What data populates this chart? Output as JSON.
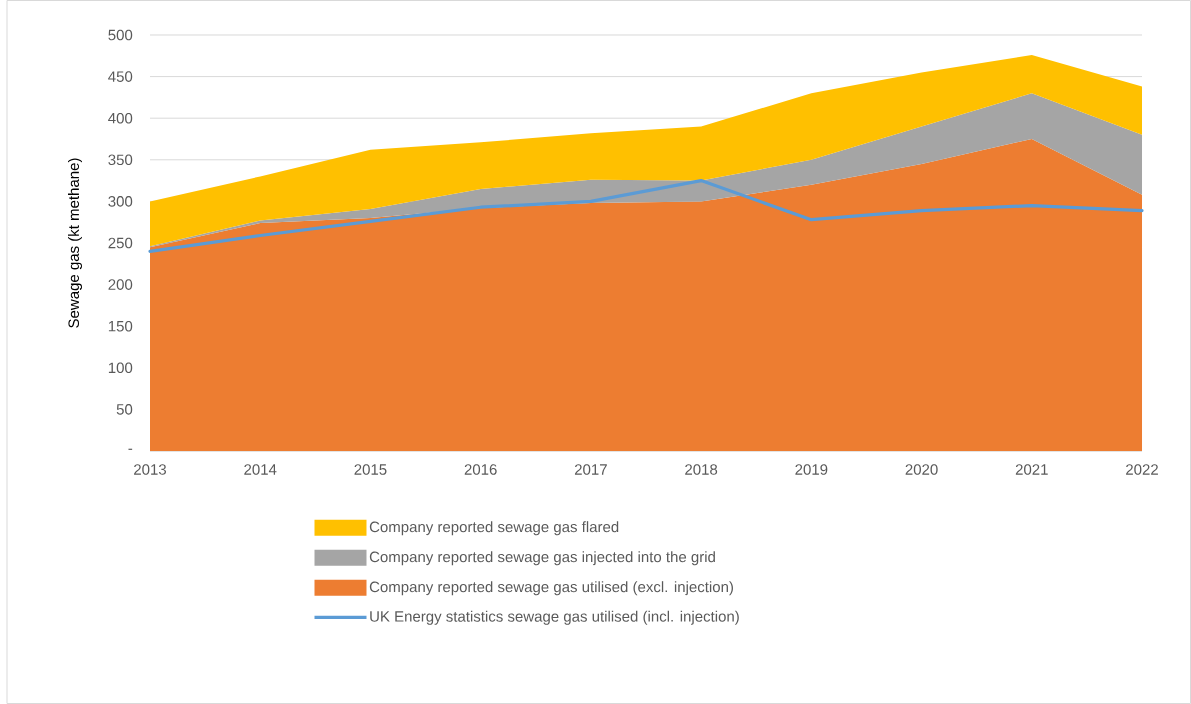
{
  "chart_data": {
    "type": "area",
    "stacked": true,
    "ylabel": "Sewage gas (kt methane)",
    "categories": [
      "2013",
      "2014",
      "2015",
      "2016",
      "2017",
      "2018",
      "2019",
      "2020",
      "2021",
      "2022"
    ],
    "series": [
      {
        "name": "Company reported sewage gas utilised (excl. injection)",
        "color": "#ed7d31",
        "values": [
          245,
          274,
          280,
          292,
          298,
          300,
          320,
          345,
          375,
          308
        ]
      },
      {
        "name": "Company reported sewage gas injected into the grid",
        "color": "#a5a5a5",
        "values": [
          1,
          3,
          11,
          23,
          28,
          25,
          30,
          45,
          55,
          72
        ]
      },
      {
        "name": "Company reported sewage gas flared",
        "color": "#ffc000",
        "values": [
          54,
          53,
          71,
          56,
          56,
          65,
          80,
          65,
          46,
          58
        ]
      },
      {
        "name": "UK Energy statistics sewage gas utilised (incl. injection)",
        "type": "line",
        "color": "#5b9bd5",
        "values": [
          240,
          259,
          276,
          293,
          300,
          325,
          278,
          289,
          295,
          289
        ]
      }
    ],
    "ylim": [
      0,
      500
    ],
    "yticks": [
      {
        "value": 0,
        "label": "-"
      },
      50,
      100,
      150,
      200,
      250,
      300,
      350,
      400,
      450,
      500
    ],
    "grid": "y",
    "legend": "bottom"
  }
}
